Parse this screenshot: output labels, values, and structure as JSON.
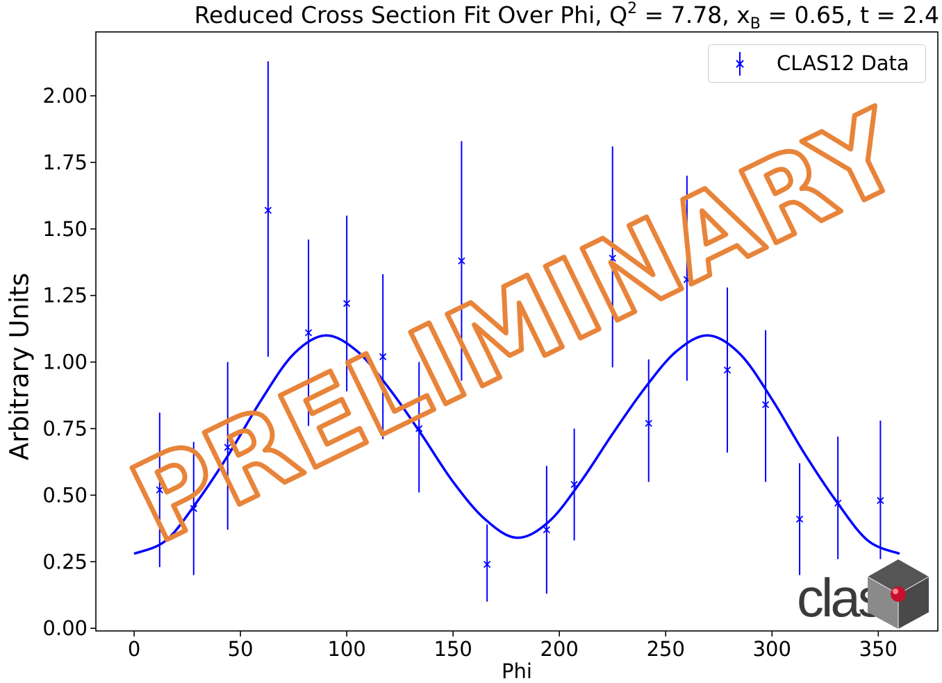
{
  "chart_data": {
    "type": "scatter",
    "title_text": "Reduced Cross Section Fit Over Phi, Q",
    "title_sup": "2",
    "title_mid": " = 7.78, x",
    "title_sub": "B",
    "title_end": " = 0.65, t = 2.4",
    "xlabel": "Phi",
    "ylabel": "Arbitrary Units",
    "xlim": [
      -18,
      378
    ],
    "ylim": [
      -0.01,
      2.24
    ],
    "xticks": [
      0,
      50,
      100,
      150,
      200,
      250,
      300,
      350
    ],
    "yticks": [
      "0.00",
      "0.25",
      "0.50",
      "0.75",
      "1.00",
      "1.25",
      "1.50",
      "1.75",
      "2.00"
    ],
    "grid": false,
    "legend_position": "top-right",
    "series": [
      {
        "name": "CLAS12 Data",
        "marker": "x",
        "color": "#0000ff",
        "points": [
          {
            "x": 12,
            "y": 0.52,
            "ylow": 0.23,
            "yhigh": 0.81
          },
          {
            "x": 28,
            "y": 0.45,
            "ylow": 0.2,
            "yhigh": 0.7
          },
          {
            "x": 44,
            "y": 0.68,
            "ylow": 0.37,
            "yhigh": 1.0
          },
          {
            "x": 63,
            "y": 1.57,
            "ylow": 1.02,
            "yhigh": 2.13
          },
          {
            "x": 82,
            "y": 1.11,
            "ylow": 0.76,
            "yhigh": 1.46
          },
          {
            "x": 100,
            "y": 1.22,
            "ylow": 0.89,
            "yhigh": 1.55
          },
          {
            "x": 117,
            "y": 1.02,
            "ylow": 0.71,
            "yhigh": 1.33
          },
          {
            "x": 134,
            "y": 0.75,
            "ylow": 0.51,
            "yhigh": 1.0
          },
          {
            "x": 154,
            "y": 1.38,
            "ylow": 0.93,
            "yhigh": 1.83
          },
          {
            "x": 166,
            "y": 0.24,
            "ylow": 0.1,
            "yhigh": 0.39
          },
          {
            "x": 194,
            "y": 0.37,
            "ylow": 0.13,
            "yhigh": 0.61
          },
          {
            "x": 207,
            "y": 0.54,
            "ylow": 0.33,
            "yhigh": 0.75
          },
          {
            "x": 225,
            "y": 1.39,
            "ylow": 0.98,
            "yhigh": 1.81
          },
          {
            "x": 242,
            "y": 0.77,
            "ylow": 0.55,
            "yhigh": 1.01
          },
          {
            "x": 260,
            "y": 1.31,
            "ylow": 0.93,
            "yhigh": 1.7
          },
          {
            "x": 279,
            "y": 0.97,
            "ylow": 0.66,
            "yhigh": 1.28
          },
          {
            "x": 297,
            "y": 0.84,
            "ylow": 0.55,
            "yhigh": 1.12
          },
          {
            "x": 313,
            "y": 0.41,
            "ylow": 0.2,
            "yhigh": 0.62
          },
          {
            "x": 331,
            "y": 0.47,
            "ylow": 0.26,
            "yhigh": 0.72
          },
          {
            "x": 351,
            "y": 0.48,
            "ylow": 0.26,
            "yhigh": 0.78
          }
        ]
      },
      {
        "type": "line",
        "color": "#0000ff",
        "description_of_fit": "smooth fit curve",
        "x": [
          0,
          15,
          30,
          45,
          60,
          75,
          90,
          105,
          120,
          135,
          150,
          165,
          180,
          195,
          210,
          225,
          240,
          255,
          270,
          285,
          300,
          315,
          330,
          345,
          360
        ],
        "y": [
          0.28,
          0.33,
          0.48,
          0.66,
          0.86,
          1.03,
          1.1,
          1.04,
          0.9,
          0.73,
          0.55,
          0.41,
          0.34,
          0.4,
          0.55,
          0.73,
          0.9,
          1.04,
          1.1,
          1.03,
          0.86,
          0.66,
          0.48,
          0.33,
          0.28
        ]
      }
    ]
  },
  "watermark": {
    "text": "PRELIMINARY",
    "color": "#e8843a"
  },
  "logo": {
    "text": "clas",
    "dot_color": "#c8102e",
    "cube_color": "#3a3a3a"
  }
}
